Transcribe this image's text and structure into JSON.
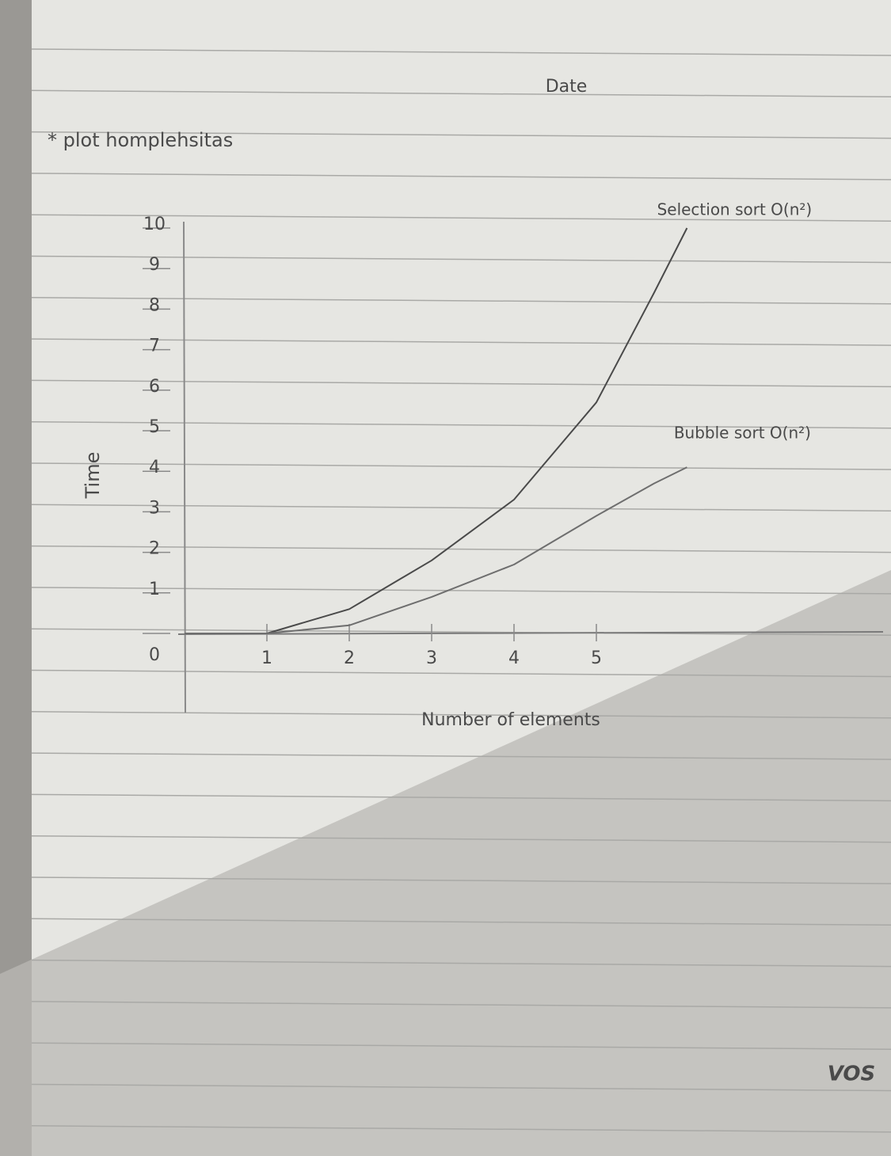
{
  "chart_data": {
    "type": "line",
    "title": "* plot homplehsitas",
    "x_label": "Number of elements",
    "y_label": "Time",
    "annotations": [
      "Date",
      "VOS"
    ],
    "x": [
      0,
      1,
      2,
      3,
      4,
      5,
      5.7,
      6.1
    ],
    "series": [
      {
        "name": "Selection sort O(n²)",
        "color": "#4a4a4a",
        "values": [
          0,
          0,
          0.6,
          1.8,
          3.3,
          5.7,
          8.4,
          10
        ]
      },
      {
        "name": "Bubble sort O(n²)",
        "color": "#6e6e6e",
        "values": [
          0,
          0,
          0.2,
          0.9,
          1.7,
          2.9,
          3.7,
          4.1
        ]
      }
    ],
    "xlim": [
      0,
      8.5
    ],
    "ylim": [
      0,
      10
    ],
    "xticks": [
      1,
      2,
      3,
      4,
      5
    ],
    "yticks": [
      0,
      1,
      2,
      3,
      4,
      5,
      6,
      7,
      8,
      9,
      10
    ]
  }
}
